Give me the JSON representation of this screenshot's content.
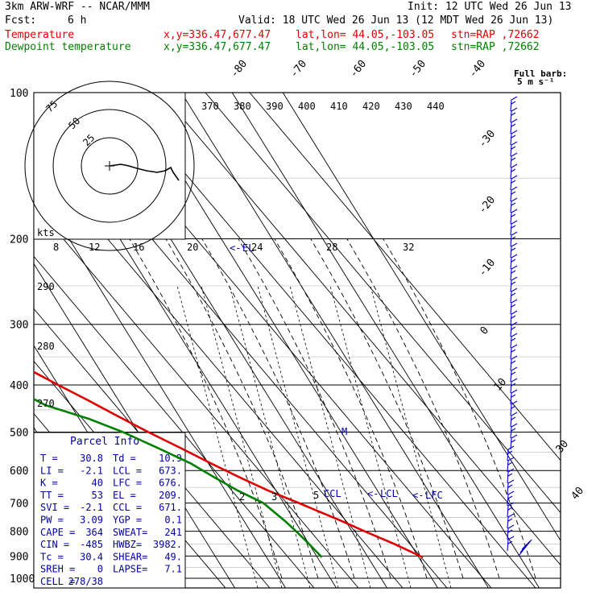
{
  "header": {
    "model": "3km ARW-WRF -- NCAR/MMM",
    "init": "Init: 12 UTC Wed 26 Jun 13",
    "fcst_label": "Fcst:",
    "fcst_value": "6 h",
    "valid": "Valid: 18 UTC Wed 26 Jun 13 (12 MDT Wed 26 Jun 13)",
    "temp_label": "Temperature",
    "dew_label": "Dewpoint temperature",
    "xy": "x,y=336.47,677.47",
    "latlon": "lat,lon= 44.05,-103.05",
    "stn": "stn=RAP ,72662"
  },
  "full_barb": {
    "line1": "Full barb:",
    "line2": "5 m s⁻¹"
  },
  "parcel_info": {
    "title": "Parcel Info",
    "rows": [
      [
        "T  =",
        "30.8",
        "Td =",
        "10.9"
      ],
      [
        "LI =",
        "-2.1",
        "LCL =",
        "673."
      ],
      [
        "K  =",
        "40",
        "LFC =",
        "676."
      ],
      [
        "TT =",
        "53",
        "EL  =",
        "209."
      ],
      [
        "SVI =",
        "-2.1",
        "CCL =",
        "671."
      ],
      [
        "PW =",
        "3.09",
        "YGP =",
        "0.1"
      ],
      [
        "CAPE =",
        "364",
        "SWEAT=",
        "241"
      ],
      [
        "CIN =",
        "-485",
        "HWBZ=",
        "3982."
      ],
      [
        "Tc =",
        "30.4",
        "SHEAR=",
        "49."
      ],
      [
        "SREH =",
        "0",
        "LAPSE=",
        "7.1"
      ],
      [
        "CELL =",
        "278/38",
        "",
        ""
      ]
    ]
  },
  "hodograph": {
    "ring_labels": [
      "75",
      "50",
      "25"
    ],
    "units_label": "kts"
  },
  "colors": {
    "temperature": "#e00000",
    "dewpoint": "#008000",
    "barbs": "#0000c8",
    "grid": "#000000"
  },
  "chart_data": {
    "type": "line",
    "pressure_levels": [
      "100",
      "200",
      "300",
      "400",
      "500",
      "600",
      "700",
      "800",
      "900",
      "1000"
    ],
    "isotherm_labels": [
      "-80",
      "-70",
      "-60",
      "-50",
      "-40",
      "-30",
      "-20",
      "-10",
      "0",
      "10",
      "30",
      "40"
    ],
    "mixing_ratio_labels": [
      "8",
      "12",
      "16",
      "20",
      "24",
      "28",
      "32"
    ],
    "theta_labels": [
      "370",
      "380",
      "390",
      "400",
      "410",
      "420",
      "430",
      "440"
    ],
    "theta_left_labels": [
      "290",
      "280",
      "270"
    ],
    "mixing_small_labels": [
      "2",
      "3",
      "5"
    ],
    "level_markers": [
      "CCL",
      "LCL",
      "LFC",
      "EL",
      "M"
    ],
    "series": [
      {
        "name": "Temperature",
        "p": [
          905,
          850,
          800,
          760,
          700,
          660,
          620,
          580,
          540,
          500,
          460,
          430,
          400,
          350,
          300,
          250,
          220,
          200,
          180,
          160,
          140,
          120,
          100
        ],
        "t": [
          30.8,
          26.8,
          22.5,
          19.0,
          13.0,
          8.5,
          4.5,
          0.5,
          -3.5,
          -8.0,
          -12.5,
          -16.0,
          -20.0,
          -27.0,
          -35.5,
          -45.5,
          -52.0,
          -57.0,
          -59.0,
          -58.0,
          -57.5,
          -56.5,
          -55.5
        ]
      },
      {
        "name": "Dewpoint temperature",
        "p": [
          905,
          850,
          800,
          760,
          700,
          660,
          620,
          580,
          540,
          500,
          470,
          440,
          420,
          380,
          350,
          300,
          250,
          200,
          160,
          130,
          110,
          100
        ],
        "t": [
          10.9,
          10.0,
          9.0,
          8.0,
          6.0,
          2.5,
          -0.5,
          -3.5,
          -8.0,
          -13.0,
          -18.0,
          -25.0,
          -27.5,
          -31.0,
          -36.0,
          -45.0,
          -54.0,
          -66.0,
          -71.0,
          -75.0,
          -79.0,
          -81.0
        ]
      }
    ]
  }
}
